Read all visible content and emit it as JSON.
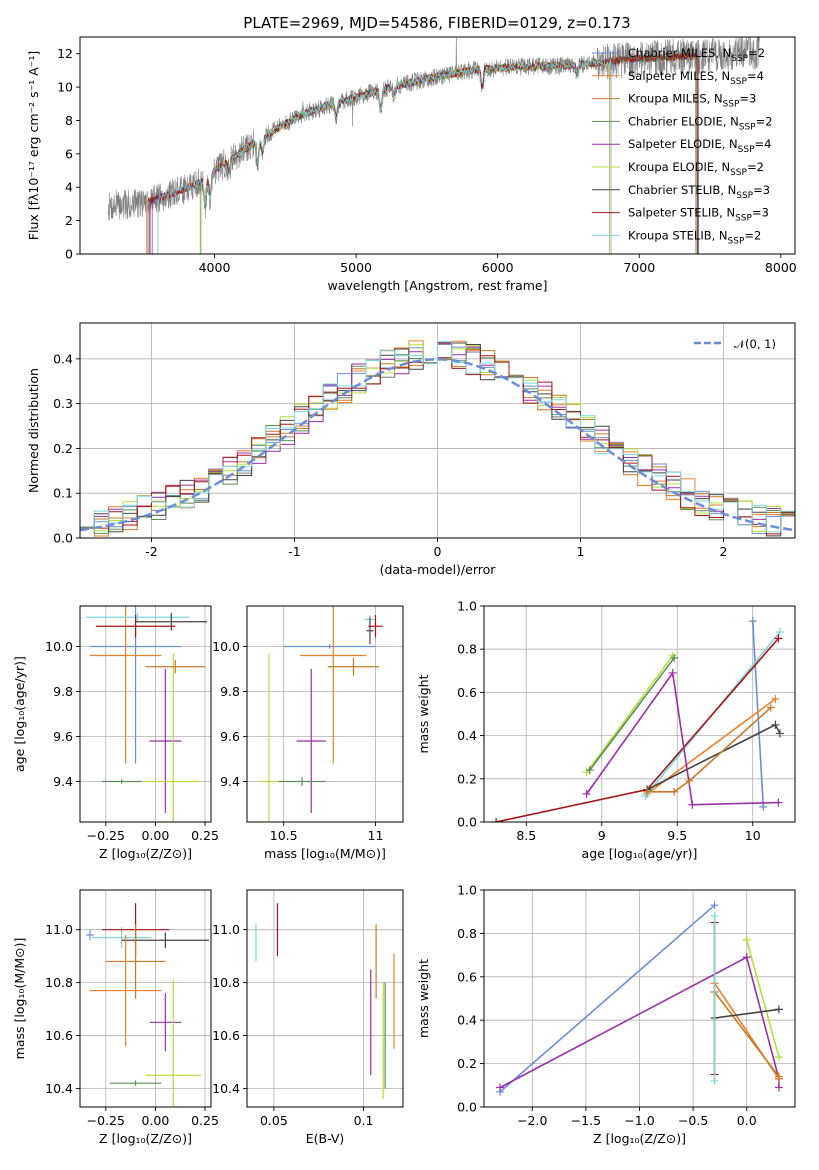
{
  "figure": {
    "title": "PLATE=2969, MJD=54586, FIBERID=0129, z=0.173"
  },
  "colors": {
    "spectrum": "#808080",
    "gaussian": "#6a8ed6",
    "models": [
      "#6a8ed6",
      "#ee7f28",
      "#c77a27",
      "#5b8f5b",
      "#9a2fa8",
      "#b5dd3e",
      "#444444",
      "#a81515",
      "#7ad9de"
    ]
  },
  "chart_data": [
    {
      "id": "spectrum",
      "type": "line",
      "xlabel": "wavelength [Angstrom, rest frame]",
      "ylabel": "Flux [fλ10⁻¹⁷ erg cm⁻² s⁻¹ A⁻¹]",
      "xlim": [
        3050,
        8100
      ],
      "ylim": [
        0,
        13
      ],
      "xticks": [
        4000,
        5000,
        6000,
        7000,
        8000
      ],
      "yticks": [
        0,
        2,
        4,
        6,
        8,
        10,
        12
      ],
      "grid": false,
      "legend": "upper-right",
      "series": [
        {
          "name": "Chabrier MILES, N_SSP=2"
        },
        {
          "name": "Salpeter MILES, N_SSP=4"
        },
        {
          "name": "Kroupa MILES, N_SSP=3"
        },
        {
          "name": "Chabrier ELODIE, N_SSP=2"
        },
        {
          "name": "Salpeter ELODIE, N_SSP=4"
        },
        {
          "name": "Kroupa ELODIE, N_SSP=2"
        },
        {
          "name": "Chabrier STELIB, N_SSP=3"
        },
        {
          "name": "Salpeter STELIB, N_SSP=3"
        },
        {
          "name": "Kroupa STELIB, N_SSP=2"
        }
      ],
      "continuum": {
        "x": [
          3250,
          3500,
          3700,
          3900,
          4000,
          4200,
          4400,
          4600,
          4800,
          5000,
          5200,
          5500,
          5800,
          6100,
          6500,
          7000,
          7500,
          7850
        ],
        "y": [
          2.8,
          3.1,
          3.6,
          4.3,
          5.0,
          6.2,
          7.3,
          8.3,
          8.9,
          9.4,
          9.9,
          10.5,
          11.0,
          11.2,
          11.3,
          11.7,
          11.9,
          12.1
        ]
      }
    },
    {
      "id": "residuals",
      "type": "step",
      "xlabel": "(data-model)/error",
      "ylabel": "Normed distribution",
      "xlim": [
        -2.5,
        2.5
      ],
      "ylim": [
        0,
        0.48
      ],
      "xticks": [
        -2,
        -1,
        0,
        1,
        2
      ],
      "yticks": [
        0.0,
        0.1,
        0.2,
        0.3,
        0.4
      ],
      "grid": true,
      "legend": "upper-right",
      "gaussian_label": "𝒩(0, 1)"
    },
    {
      "id": "age_vs_Z",
      "type": "errorbar",
      "xlabel": "Z [log₁₀(Z/Z⊙)]",
      "ylabel": "age  [log₁₀(age/yr)]",
      "xlim": [
        -0.38,
        0.28
      ],
      "ylim": [
        9.22,
        10.18
      ],
      "xticks": [
        -0.25,
        0.0,
        0.25
      ],
      "xticklabels": [
        "−0.25",
        "0.00",
        "0.25"
      ],
      "yticks": [
        9.4,
        9.6,
        9.8,
        10.0
      ],
      "grid": true,
      "points": [
        {
          "c": 0,
          "x": -0.1,
          "y": 10.0,
          "xe": 0.23,
          "ye": 0.52
        },
        {
          "c": 1,
          "x": -0.15,
          "y": 9.96,
          "xe": 0.18,
          "ye": 0.48
        },
        {
          "c": 8,
          "x": -0.09,
          "y": 10.13,
          "xe": 0.26,
          "ye": 0.02
        },
        {
          "c": 7,
          "x": -0.1,
          "y": 10.09,
          "xe": 0.2,
          "ye": 0.05
        },
        {
          "c": 6,
          "x": 0.08,
          "y": 10.11,
          "xe": 0.18,
          "ye": 0.04
        },
        {
          "c": 4,
          "x": 0.05,
          "y": 9.58,
          "xe": 0.08,
          "ye": 0.32
        },
        {
          "c": 5,
          "x": 0.09,
          "y": 9.4,
          "xe": 0.14,
          "ye": 0.57
        },
        {
          "c": 3,
          "x": -0.17,
          "y": 9.4,
          "xe": 0.1,
          "ye": 0.01
        },
        {
          "c": 2,
          "x": 0.1,
          "y": 9.91,
          "xe": 0.15,
          "ye": 0.03
        }
      ]
    },
    {
      "id": "age_vs_mass",
      "type": "errorbar",
      "xlabel": "mass [log₁₀(M/M⊙)]",
      "ylabel": "",
      "xlim": [
        10.3,
        11.15
      ],
      "ylim": [
        9.22,
        10.18
      ],
      "xticks": [
        10.5,
        11.0
      ],
      "yticks": [
        9.4,
        9.6,
        9.8,
        10.0
      ],
      "grid": true,
      "points": [
        {
          "c": 0,
          "x": 10.75,
          "y": 10.0,
          "xe": 0.25,
          "ye": 0.01
        },
        {
          "c": 8,
          "x": 10.97,
          "y": 10.12,
          "xe": 0.03,
          "ye": 0.02
        },
        {
          "c": 7,
          "x": 11.0,
          "y": 10.09,
          "xe": 0.04,
          "ye": 0.05
        },
        {
          "c": 2,
          "x": 10.88,
          "y": 9.91,
          "xe": 0.14,
          "ye": 0.04
        },
        {
          "c": 1,
          "x": 10.77,
          "y": 9.96,
          "xe": 0.18,
          "ye": 0.48
        },
        {
          "c": 4,
          "x": 10.65,
          "y": 9.58,
          "xe": 0.08,
          "ye": 0.32
        },
        {
          "c": 5,
          "x": 10.42,
          "y": 9.4,
          "xe": 0.05,
          "ye": 0.57
        },
        {
          "c": 3,
          "x": 10.6,
          "y": 9.4,
          "xe": 0.13,
          "ye": 0.02
        },
        {
          "c": 6,
          "x": 10.97,
          "y": 10.07,
          "xe": 0.02,
          "ye": 0.06
        }
      ]
    },
    {
      "id": "weight_vs_age",
      "type": "line",
      "xlabel": "age  [log₁₀(age/yr)]",
      "ylabel": "mass weight",
      "xlim": [
        8.22,
        10.28
      ],
      "ylim": [
        0,
        1
      ],
      "xticks": [
        8.5,
        9.0,
        9.5,
        10.0
      ],
      "yticks": [
        0.0,
        0.2,
        0.4,
        0.6,
        0.8,
        1.0
      ],
      "grid": true,
      "series": [
        {
          "c": 0,
          "x": [
            10.0,
            10.07
          ],
          "y": [
            0.93,
            0.07
          ]
        },
        {
          "c": 1,
          "x": [
            9.3,
            10.15
          ],
          "y": [
            0.13,
            0.57
          ]
        },
        {
          "c": 8,
          "x": [
            9.29,
            10.18
          ],
          "y": [
            0.12,
            0.88
          ]
        },
        {
          "c": 7,
          "x": [
            8.3,
            9.3,
            10.17
          ],
          "y": [
            0.0,
            0.15,
            0.85
          ]
        },
        {
          "c": 6,
          "x": [
            9.3,
            10.15,
            10.18
          ],
          "y": [
            0.15,
            0.45,
            0.41
          ]
        },
        {
          "c": 4,
          "x": [
            8.9,
            9.47,
            9.6,
            10.17
          ],
          "y": [
            0.13,
            0.69,
            0.08,
            0.09
          ]
        },
        {
          "c": 5,
          "x": [
            8.9,
            9.47
          ],
          "y": [
            0.23,
            0.77
          ]
        },
        {
          "c": 3,
          "x": [
            8.92,
            9.48
          ],
          "y": [
            0.24,
            0.76
          ]
        },
        {
          "c": 2,
          "x": [
            9.3,
            9.48,
            9.58,
            10.12
          ],
          "y": [
            0.14,
            0.14,
            0.19,
            0.53
          ]
        }
      ]
    },
    {
      "id": "mass_vs_Z",
      "type": "errorbar",
      "xlabel": "Z [log₁₀(Z/Z⊙)]",
      "ylabel": "mass [log₁₀(M/M⊙)]",
      "xlim": [
        -0.38,
        0.28
      ],
      "ylim": [
        10.33,
        11.15
      ],
      "xticks": [
        -0.25,
        0.0,
        0.25
      ],
      "xticklabels": [
        "−0.25",
        "0.00",
        "0.25"
      ],
      "yticks": [
        10.4,
        10.6,
        10.8,
        11.0
      ],
      "grid": true,
      "points": [
        {
          "c": 0,
          "x": -0.33,
          "y": 10.98,
          "xe": 0.02,
          "ye": 0.02
        },
        {
          "c": 8,
          "x": -0.17,
          "y": 10.97,
          "xe": 0.15,
          "ye": 0.04
        },
        {
          "c": 7,
          "x": -0.1,
          "y": 11.0,
          "xe": 0.17,
          "ye": 0.1
        },
        {
          "c": 6,
          "x": 0.05,
          "y": 10.96,
          "xe": 0.22,
          "ye": 0.03
        },
        {
          "c": 2,
          "x": -0.1,
          "y": 10.88,
          "xe": 0.15,
          "ye": 0.14
        },
        {
          "c": 1,
          "x": -0.15,
          "y": 10.77,
          "xe": 0.18,
          "ye": 0.21
        },
        {
          "c": 4,
          "x": 0.05,
          "y": 10.65,
          "xe": 0.08,
          "ye": 0.11
        },
        {
          "c": 5,
          "x": 0.09,
          "y": 10.45,
          "xe": 0.14,
          "ye": 0.36
        },
        {
          "c": 3,
          "x": -0.1,
          "y": 10.42,
          "xe": 0.13,
          "ye": 0.01
        }
      ]
    },
    {
      "id": "mass_vs_ebv",
      "type": "errorbar",
      "xlabel": "E(B-V)",
      "ylabel": "",
      "xlim": [
        0.035,
        0.122
      ],
      "ylim": [
        10.33,
        11.15
      ],
      "xticks": [
        0.05,
        0.1
      ],
      "yticks": [
        10.4,
        10.6,
        10.8,
        11.0
      ],
      "grid": true,
      "points": [
        {
          "c": 8,
          "x": 0.04,
          "y": 10.95,
          "xe": 0,
          "ye": 0.07
        },
        {
          "c": 7,
          "x": 0.052,
          "y": 11.0,
          "xe": 0,
          "ye": 0.1
        },
        {
          "c": 4,
          "x": 0.104,
          "y": 10.65,
          "xe": 0,
          "ye": 0.2
        },
        {
          "c": 2,
          "x": 0.107,
          "y": 10.88,
          "xe": 0,
          "ye": 0.14
        },
        {
          "c": 5,
          "x": 0.111,
          "y": 10.58,
          "xe": 0,
          "ye": 0.22
        },
        {
          "c": 3,
          "x": 0.112,
          "y": 10.6,
          "xe": 0,
          "ye": 0.2
        },
        {
          "c": 1,
          "x": 0.117,
          "y": 10.73,
          "xe": 0,
          "ye": 0.18
        }
      ]
    },
    {
      "id": "weight_vs_Z",
      "type": "line",
      "xlabel": "Z [log₁₀(Z/Z⊙)]",
      "ylabel": "mass weight",
      "xlim": [
        -2.45,
        0.45
      ],
      "ylim": [
        0,
        1
      ],
      "xticks": [
        -2.0,
        -1.5,
        -1.0,
        -0.5,
        0.0
      ],
      "xticklabels": [
        "−2.0",
        "−1.5",
        "−1.0",
        "−0.5",
        "0.0"
      ],
      "yticks": [
        0.0,
        0.2,
        0.4,
        0.6,
        0.8,
        1.0
      ],
      "grid": true,
      "series": [
        {
          "c": 0,
          "x": [
            -2.3,
            -0.3
          ],
          "y": [
            0.07,
            0.93
          ]
        },
        {
          "c": 4,
          "x": [
            -2.3,
            0.0,
            0.3,
            0.3
          ],
          "y": [
            0.09,
            0.69,
            0.13,
            0.09
          ]
        },
        {
          "c": 5,
          "x": [
            0.0,
            0.3
          ],
          "y": [
            0.77,
            0.23
          ]
        },
        {
          "c": 1,
          "x": [
            -0.3,
            0.3
          ],
          "y": [
            0.57,
            0.13
          ]
        },
        {
          "c": 2,
          "x": [
            -0.3,
            0.3
          ],
          "y": [
            0.53,
            0.14
          ]
        },
        {
          "c": 6,
          "x": [
            -0.3,
            0.3
          ],
          "y": [
            0.41,
            0.45
          ]
        },
        {
          "c": 7,
          "x": [
            -0.3,
            -0.3
          ],
          "y": [
            0.15,
            0.85
          ]
        },
        {
          "c": 8,
          "x": [
            -0.3,
            -0.3
          ],
          "y": [
            0.12,
            0.88
          ]
        }
      ]
    }
  ]
}
